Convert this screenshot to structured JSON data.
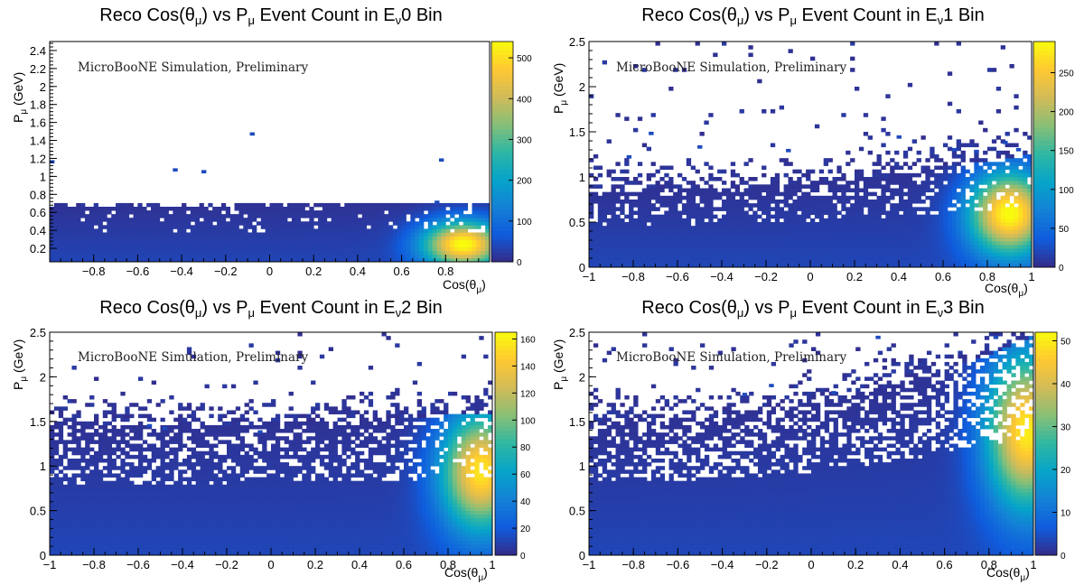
{
  "title_prefix": "Reco Cos(θ",
  "title_sub_mu": "μ",
  "title_mid": ") vs P",
  "title_tail": " Event Count in E",
  "title_sub_nu": "ν",
  "y_label_main": "P",
  "y_label_sub": "μ",
  "y_label_unit": " (GeV)",
  "x_label_main": "Cos(θ",
  "x_label_sub": "μ",
  "x_label_end": ")",
  "sim_label": "MicroBooNE Simulation, Preliminary",
  "colormap": [
    "#352a87",
    "#0f5cdd",
    "#1481d6",
    "#06a4ca",
    "#2eb7a4",
    "#87bf77",
    "#d1bb59",
    "#fec832",
    "#f9fb0e"
  ],
  "chart_data": [
    {
      "type": "heatmap",
      "bin_label": "0 Bin",
      "xlim": [
        -1,
        1
      ],
      "ylim": [
        0.05,
        2.5
      ],
      "x_ticks": [
        -0.8,
        -0.6,
        -0.4,
        -0.2,
        0,
        0.2,
        0.4,
        0.6,
        0.8
      ],
      "y_ticks": [
        0.2,
        0.4,
        0.6,
        0.8,
        1,
        1.2,
        1.4,
        1.6,
        1.8,
        2,
        2.2,
        2.4
      ],
      "z_ticks": [
        0,
        100,
        200,
        300,
        400,
        500
      ],
      "zmax": 540,
      "hotspot": {
        "x": 0.88,
        "y": 0.25,
        "peak": 520
      },
      "band": {
        "y_top_left": 0.68,
        "y_top_right": 0.7,
        "y_cutoff": 0.7
      },
      "outliers": [
        [
          -0.99,
          1.16
        ],
        [
          -0.43,
          1.07
        ],
        [
          -0.3,
          1.05
        ],
        [
          -0.08,
          1.47
        ],
        [
          0.78,
          1.18
        ],
        [
          0.76,
          0.71
        ]
      ]
    },
    {
      "type": "heatmap",
      "bin_label": "1 Bin",
      "xlim": [
        -1,
        1
      ],
      "ylim": [
        0,
        2.5
      ],
      "x_ticks": [
        -1,
        -0.8,
        -0.6,
        -0.4,
        -0.2,
        0,
        0.2,
        0.4,
        0.6,
        0.8,
        1
      ],
      "y_ticks": [
        0,
        0.5,
        1,
        1.5,
        2,
        2.5
      ],
      "z_ticks": [
        0,
        50,
        100,
        150,
        200,
        250
      ],
      "zmax": 290,
      "hotspot": {
        "x": 0.9,
        "y": 0.6,
        "peak": 280
      },
      "band": {
        "y_top_left": 0.85,
        "y_top_right": 1.25
      },
      "outliers": [
        [
          -0.72,
          1.48
        ],
        [
          -0.5,
          1.33
        ],
        [
          -0.82,
          1.22
        ],
        [
          -0.1,
          1.29
        ],
        [
          0.4,
          1.44
        ],
        [
          0.65,
          1.3
        ],
        [
          0.88,
          1.38
        ],
        [
          0.94,
          1.3
        ],
        [
          0.75,
          1.28
        ]
      ]
    },
    {
      "type": "heatmap",
      "bin_label": "2 Bin",
      "xlim": [
        -1,
        1
      ],
      "ylim": [
        0,
        2.5
      ],
      "x_ticks": [
        -1,
        -0.8,
        -0.6,
        -0.4,
        -0.2,
        0,
        0.2,
        0.4,
        0.6,
        0.8,
        1
      ],
      "y_ticks": [
        0,
        0.5,
        1,
        1.5,
        2,
        2.5
      ],
      "z_ticks": [
        0,
        20,
        40,
        60,
        80,
        100,
        120,
        140,
        160
      ],
      "zmax": 165,
      "hotspot": {
        "x": 0.95,
        "y": 0.95,
        "peak": 150
      },
      "band": {
        "y_top_left": 1.45,
        "y_top_right": 1.6
      },
      "outliers": [
        [
          -0.55,
          1.45
        ],
        [
          -0.48,
          1.42
        ],
        [
          -0.05,
          1.38
        ]
      ]
    },
    {
      "type": "heatmap",
      "bin_label": "3 Bin",
      "xlim": [
        -1,
        1
      ],
      "ylim": [
        0,
        2.5
      ],
      "x_ticks": [
        -1,
        -0.8,
        -0.6,
        -0.4,
        -0.2,
        0,
        0.2,
        0.4,
        0.6,
        0.8,
        1
      ],
      "y_ticks": [
        0,
        0.5,
        1,
        1.5,
        2,
        2.5
      ],
      "z_ticks": [
        0,
        10,
        20,
        30,
        40,
        50
      ],
      "zmax": 52,
      "hotspot": {
        "x": 0.97,
        "y": 1.4,
        "peak": 48
      },
      "band": {
        "y_top_left": 1.5,
        "y_top_right": 2.45
      },
      "outliers": [
        [
          0.3,
          2.44
        ],
        [
          0.83,
          2.44
        ],
        [
          -0.18,
          1.9
        ],
        [
          -0.3,
          1.8
        ],
        [
          0.1,
          1.82
        ]
      ]
    }
  ]
}
